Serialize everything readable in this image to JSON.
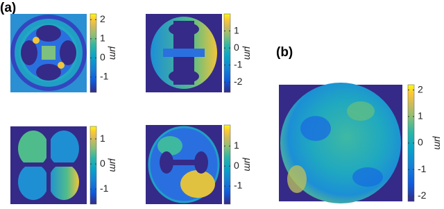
{
  "panel_labels": [
    "(a)",
    "(b)"
  ],
  "chart_data": [
    {
      "type": "image",
      "colorbar_label": "μm",
      "clim": [
        -1.8,
        2.3
      ],
      "yticks": [
        -1,
        0,
        1,
        2
      ]
    },
    {
      "type": "image",
      "colorbar_label": "μm",
      "clim": [
        -2.6,
        2.0
      ],
      "yticks": [
        -2,
        -1,
        0,
        1
      ]
    },
    {
      "type": "image",
      "colorbar_label": "μm",
      "clim": [
        -1.6,
        1.5
      ],
      "yticks": [
        -1,
        0,
        1
      ]
    },
    {
      "type": "image",
      "colorbar_label": "μm",
      "clim": [
        -1.9,
        2.05
      ],
      "yticks": [
        -1,
        0,
        1
      ]
    },
    {
      "type": "image",
      "colorbar_label": "μm",
      "clim": [
        -2.2,
        2.2
      ],
      "yticks": [
        -2,
        -1,
        0,
        1,
        2
      ]
    }
  ]
}
